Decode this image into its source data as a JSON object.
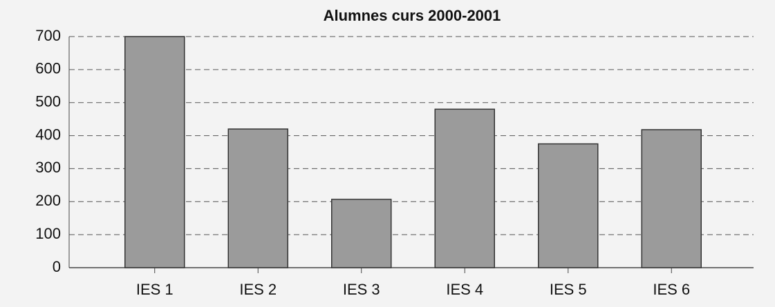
{
  "chart_data": {
    "type": "bar",
    "title": "Alumnes curs 2000-2001",
    "categories": [
      "IES 1",
      "IES 2",
      "IES 3",
      "IES 4",
      "IES 5",
      "IES 6"
    ],
    "values": [
      700,
      420,
      207,
      480,
      375,
      418
    ],
    "color": "#9b9b9b",
    "ylim": [
      0,
      700
    ],
    "yticks": [
      0,
      100,
      200,
      300,
      400,
      500,
      600,
      700
    ],
    "grid": true
  }
}
